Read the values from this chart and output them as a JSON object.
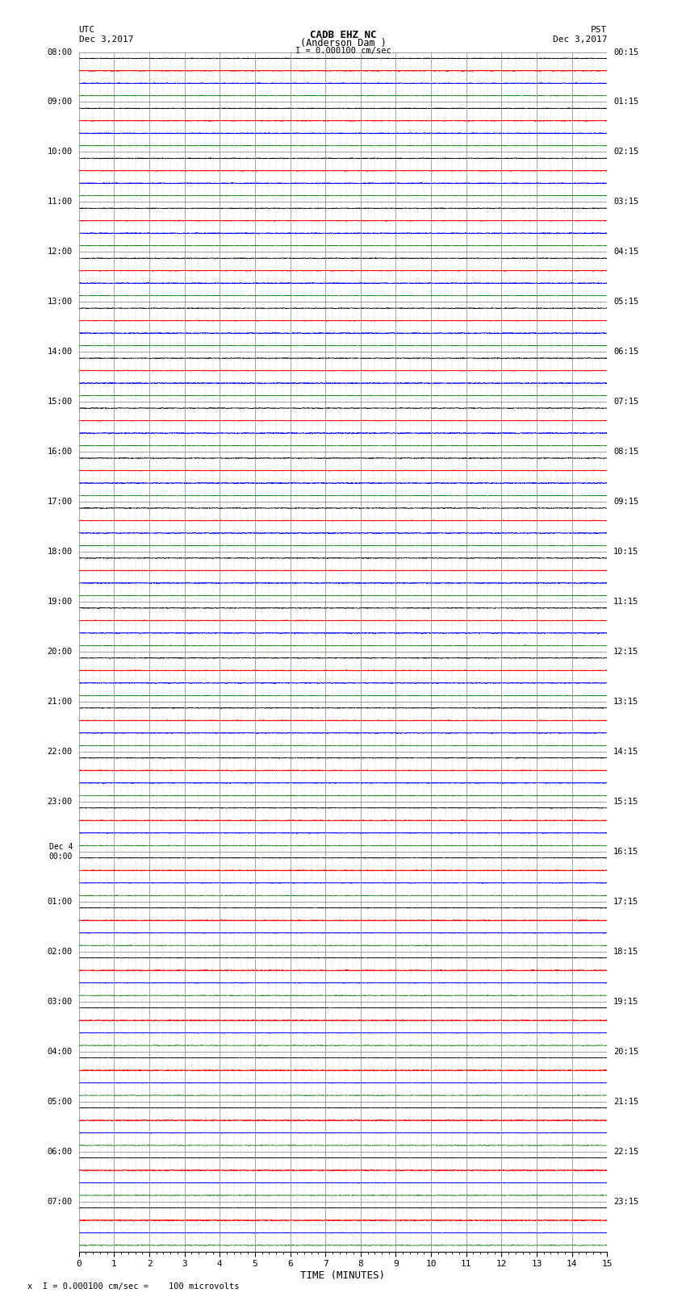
{
  "title_line1": "CADB EHZ NC",
  "title_line2": "(Anderson Dam )",
  "title_line3": "I = 0.000100 cm/sec",
  "left_header_line1": "UTC",
  "left_header_line2": "Dec 3,2017",
  "right_header_line1": "PST",
  "right_header_line2": "Dec 3,2017",
  "xlabel": "TIME (MINUTES)",
  "footer": "x  I = 0.000100 cm/sec =    100 microvolts",
  "xlim": [
    0,
    15
  ],
  "xticks": [
    0,
    1,
    2,
    3,
    4,
    5,
    6,
    7,
    8,
    9,
    10,
    11,
    12,
    13,
    14,
    15
  ],
  "left_times": [
    "08:00",
    "09:00",
    "10:00",
    "11:00",
    "12:00",
    "13:00",
    "14:00",
    "15:00",
    "16:00",
    "17:00",
    "18:00",
    "19:00",
    "20:00",
    "21:00",
    "22:00",
    "23:00",
    "Dec 4\n00:00",
    "01:00",
    "02:00",
    "03:00",
    "04:00",
    "05:00",
    "06:00",
    "07:00"
  ],
  "right_times": [
    "00:15",
    "01:15",
    "02:15",
    "03:15",
    "04:15",
    "05:15",
    "06:15",
    "07:15",
    "08:15",
    "09:15",
    "10:15",
    "11:15",
    "12:15",
    "13:15",
    "14:15",
    "15:15",
    "16:15",
    "17:15",
    "18:15",
    "19:15",
    "20:15",
    "21:15",
    "22:15",
    "23:15"
  ],
  "n_rows": 24,
  "traces_per_row": 4,
  "trace_colors": [
    "black",
    "red",
    "blue",
    "green"
  ],
  "bg_color": "white",
  "grid_color": "#808080",
  "noise_amp": [
    0.012,
    0.018,
    0.016,
    0.01
  ],
  "seed": 42
}
